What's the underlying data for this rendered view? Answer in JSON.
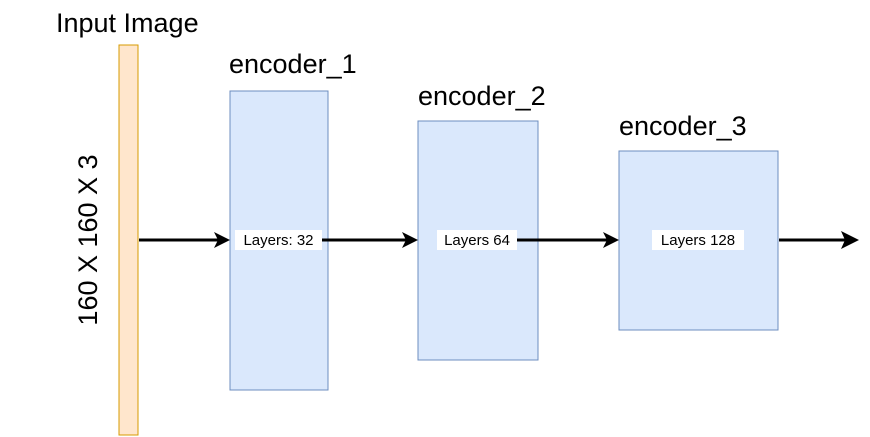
{
  "input": {
    "title": "Input Image",
    "dimensions": "160 X 160 X 3"
  },
  "encoders": [
    {
      "name": "encoder_1",
      "layers_label": "Layers: 32"
    },
    {
      "name": "encoder_2",
      "layers_label": "Layers 64"
    },
    {
      "name": "encoder_3",
      "layers_label": "Layers 128"
    }
  ],
  "colors": {
    "input_fill": "#ffe6cc",
    "input_stroke": "#d79b00",
    "encoder_fill": "#dae8fc",
    "encoder_stroke": "#6c8ebf",
    "arrow": "#000000"
  }
}
